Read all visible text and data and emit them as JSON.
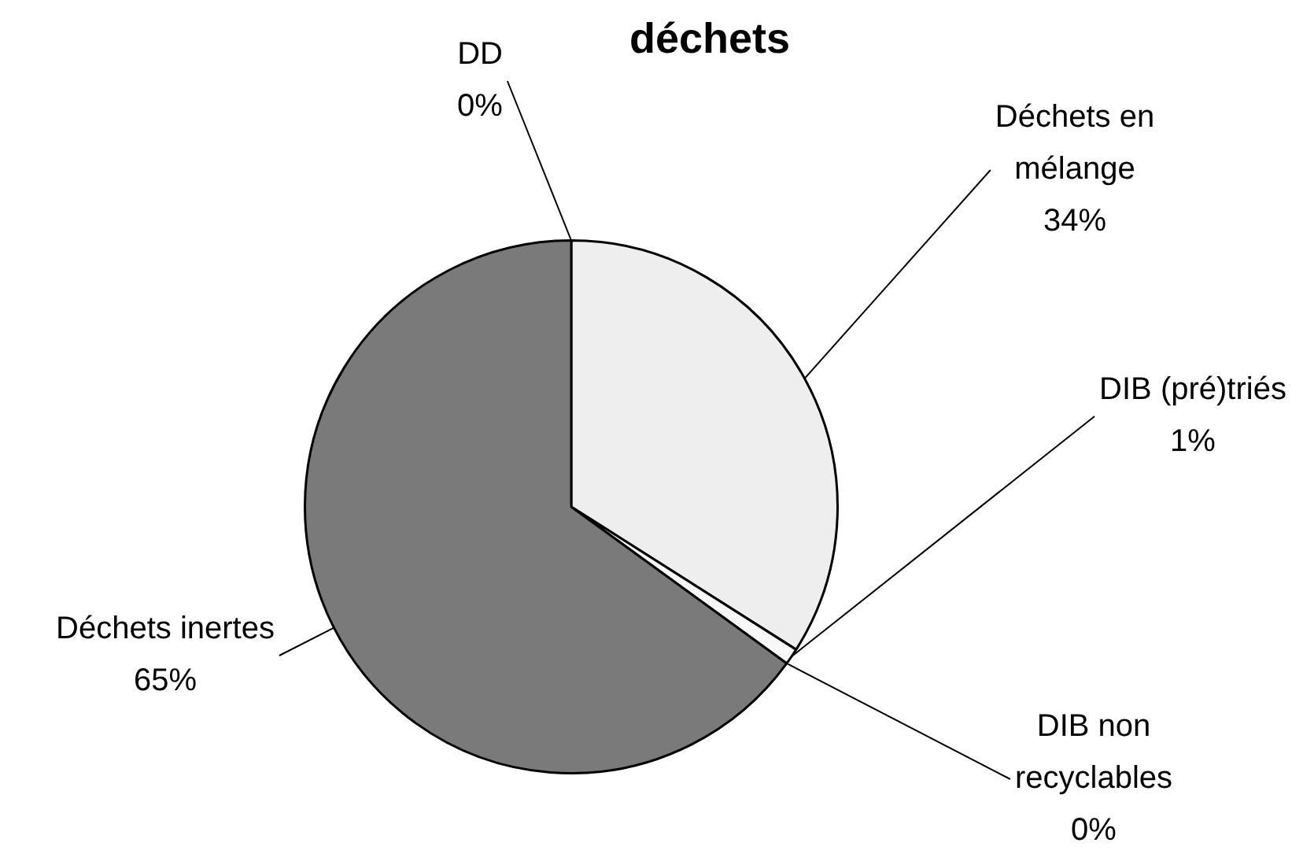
{
  "chart_data": {
    "type": "pie",
    "title": "déchets",
    "categories": [
      "Déchets en mélange",
      "DIB (pré)triés",
      "DIB non recyclables",
      "Déchets inertes",
      "DD"
    ],
    "values": [
      34,
      1,
      0,
      65,
      0
    ],
    "value_labels": [
      "34%",
      "1%",
      "0%",
      "65%",
      "0%"
    ],
    "colors": [
      "#eeeeee",
      "#f8f8f8",
      "#d0d0d0",
      "#7a7a7a",
      "#bbbbbb"
    ],
    "legend": false
  }
}
